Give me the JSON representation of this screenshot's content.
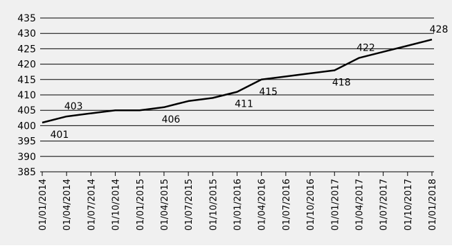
{
  "chart_data": {
    "type": "line",
    "categories": [
      "01/01/2014",
      "01/04/2014",
      "01/07/2014",
      "01/10/2014",
      "01/01/2015",
      "01/04/2015",
      "01/07/2015",
      "01/10/2015",
      "01/01/2016",
      "01/04/2016",
      "01/07/2016",
      "01/10/2016",
      "01/01/2017",
      "01/04/2017",
      "01/07/2017",
      "01/10/2017",
      "01/01/2018"
    ],
    "series": [
      {
        "values": [
          401,
          403,
          404,
          405,
          405,
          406,
          408,
          409,
          411,
          415,
          416,
          417,
          418,
          422,
          424,
          426,
          428
        ]
      }
    ],
    "labels": [
      {
        "index": 0,
        "text": "401",
        "pos": "below"
      },
      {
        "index": 1,
        "text": "403",
        "pos": "above"
      },
      {
        "index": 5,
        "text": "406",
        "pos": "below"
      },
      {
        "index": 8,
        "text": "411",
        "pos": "below"
      },
      {
        "index": 9,
        "text": "415",
        "pos": "below"
      },
      {
        "index": 12,
        "text": "418",
        "pos": "below"
      },
      {
        "index": 13,
        "text": "422",
        "pos": "above"
      },
      {
        "index": 16,
        "text": "428",
        "pos": "above"
      }
    ],
    "yticks": [
      "385",
      "390",
      "395",
      "400",
      "405",
      "410",
      "415",
      "420",
      "425",
      "430",
      "435"
    ],
    "ylim": [
      385,
      435
    ],
    "grid": true,
    "line_color": "#000000",
    "grid_color": "#000000",
    "background": "#f0f0f0",
    "title": "",
    "xlabel": "",
    "ylabel": ""
  }
}
